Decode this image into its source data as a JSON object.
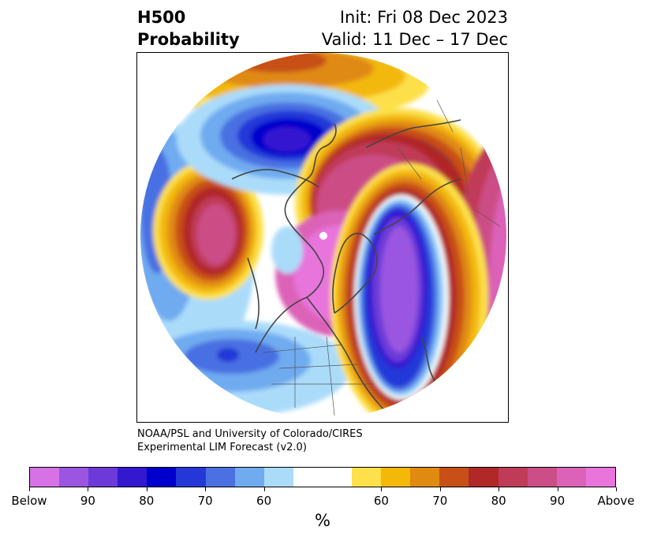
{
  "header": {
    "left_line1": "H500",
    "left_line2": "Probability",
    "right_line1": "Init: Fri 08 Dec 2023",
    "right_line2": "Valid: 11 Dec – 17 Dec"
  },
  "credit": {
    "line1": "NOAA/PSL and University of Colorado/CIRES",
    "line2": "Experimental LIM Forecast (v2.0)"
  },
  "colorbar": {
    "colors": [
      "#d672e6",
      "#9a56e0",
      "#6b3ad9",
      "#3418d0",
      "#0000cc",
      "#2438d8",
      "#4a70e2",
      "#70abf0",
      "#aadcfa",
      "#ffffff",
      "#ffffff",
      "#fde04a",
      "#f3b808",
      "#e08a12",
      "#c85018",
      "#b02828",
      "#c03b58",
      "#cc4e86",
      "#dc62b8",
      "#e874dc"
    ],
    "tick_labels": [
      "Below",
      "90",
      "80",
      "70",
      "60",
      "60",
      "70",
      "80",
      "90",
      "Above"
    ],
    "unit": "%"
  },
  "map": {
    "region": "Northern Hemisphere polar projection",
    "variable": "500 hPa height probability"
  }
}
